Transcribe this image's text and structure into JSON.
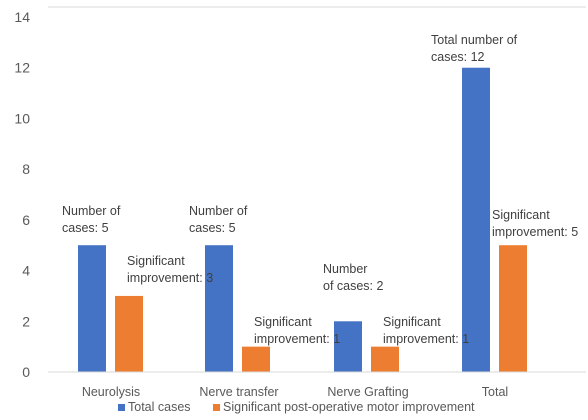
{
  "chart_data": {
    "type": "bar",
    "categories": [
      "Neurolysis",
      "Nerve transfer",
      "Nerve Grafting",
      "Total"
    ],
    "series": [
      {
        "name": "Total cases",
        "values": [
          5,
          5,
          2,
          12
        ],
        "color": "#4472C4",
        "labels": [
          [
            "Number of",
            "cases: 5"
          ],
          [
            "Number of",
            "cases: 5"
          ],
          [
            "Number",
            "of cases: 2"
          ],
          [
            "Total number of",
            "cases: 12"
          ]
        ]
      },
      {
        "name": "Significant post-operative motor improvement",
        "values": [
          3,
          1,
          1,
          5
        ],
        "color": "#ED7D31",
        "labels": [
          [
            "Significant",
            "improvement: 3"
          ],
          [
            "Significant",
            "improvement: 1"
          ],
          [
            "Significant",
            "improvement: 1"
          ],
          [
            "Significant",
            "improvement: 5"
          ]
        ]
      }
    ],
    "yticks": [
      "0",
      "2",
      "4",
      "6",
      "8",
      "10",
      "12",
      "14"
    ],
    "ylim": [
      0,
      14
    ],
    "grid": false,
    "legend_position": "bottom"
  }
}
